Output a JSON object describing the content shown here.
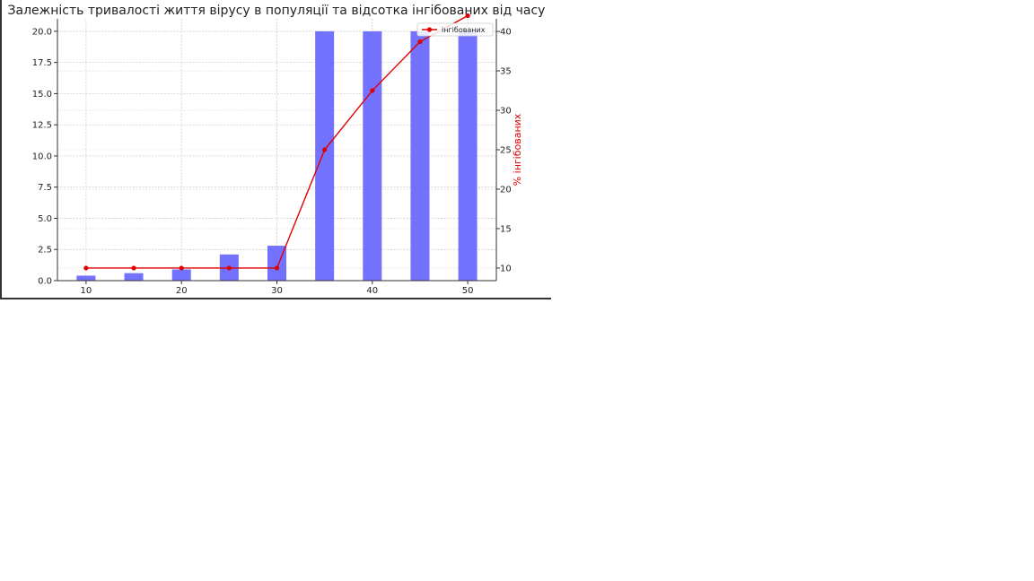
{
  "chart_data": {
    "type": "bar+line",
    "title": "Залежність тривалості життя вірусу в популяції та відсотка інгібованих від часу",
    "x": [
      10,
      15,
      20,
      25,
      30,
      35,
      40,
      45,
      50
    ],
    "x_ticks": [
      "10",
      "20",
      "30",
      "40",
      "50"
    ],
    "xlim": [
      7,
      53
    ],
    "bar_series": {
      "name": "",
      "values": [
        0.4,
        0.6,
        0.9,
        2.1,
        2.8,
        20,
        20,
        20,
        20
      ],
      "ylim": [
        0,
        21
      ],
      "y_ticks": [
        "0.0",
        "2.5",
        "5.0",
        "7.5",
        "10.0",
        "12.5",
        "15.0",
        "17.5",
        "20.0"
      ],
      "ylabel": "",
      "color": "#6a6aff"
    },
    "line_series": {
      "name": "інгібованих",
      "values": [
        10,
        10,
        10,
        10,
        10,
        25,
        32.5,
        38.7,
        42
      ],
      "ylim": [
        8.4,
        41.6
      ],
      "y_ticks": [
        "10",
        "15",
        "20",
        "25",
        "30",
        "35",
        "40"
      ],
      "ylabel": "% інгібованих",
      "color": "#e00000"
    },
    "grid": true,
    "legend_position": "top-right"
  }
}
